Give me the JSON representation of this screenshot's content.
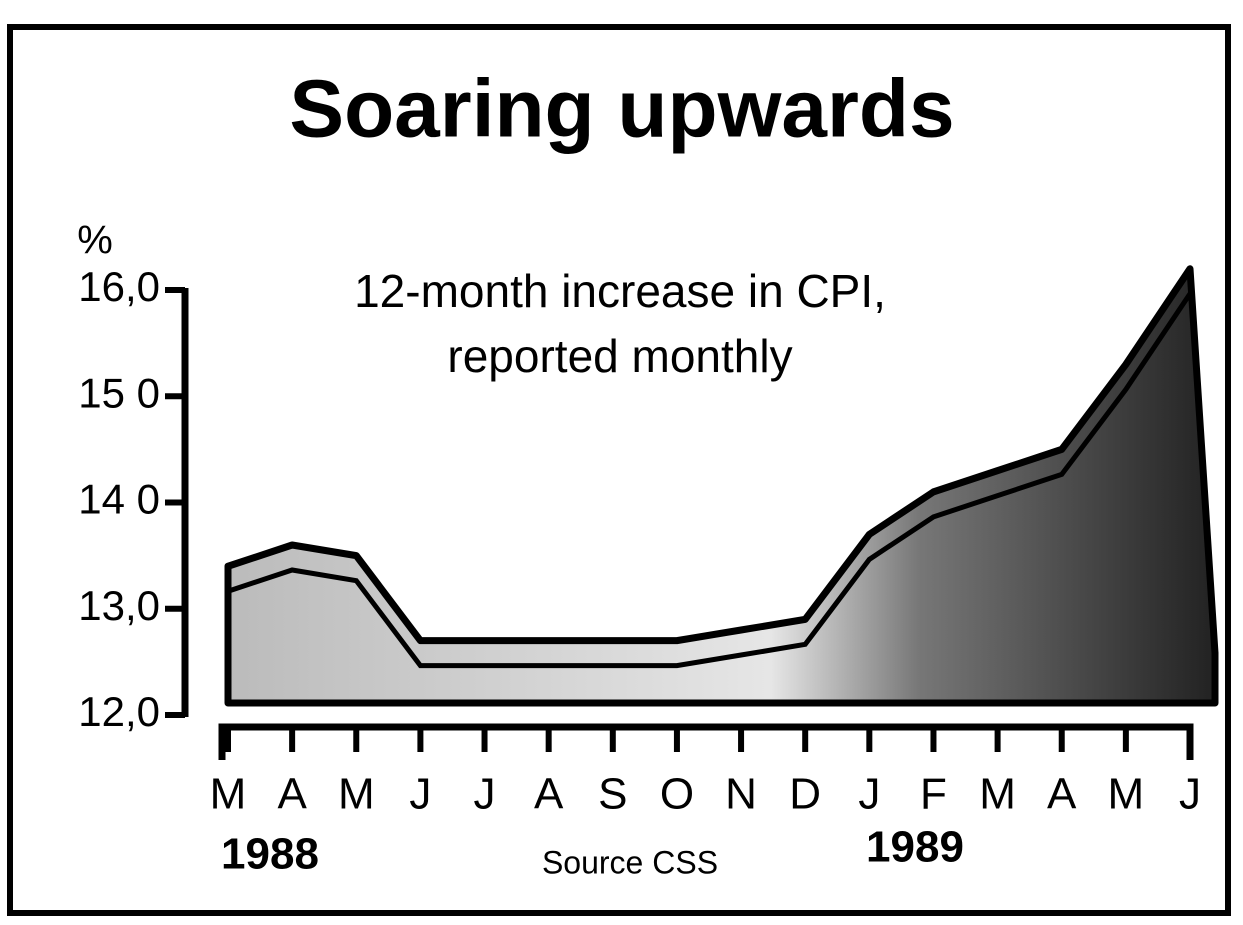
{
  "chart_data": {
    "type": "area",
    "title": "Soaring upwards",
    "subtitle": [
      "12-month increase in CPI,",
      "reported monthly"
    ],
    "y_label": "%",
    "categories": [
      "M",
      "A",
      "M",
      "J",
      "J",
      "A",
      "S",
      "O",
      "N",
      "D",
      "J",
      "F",
      "M",
      "A",
      "M",
      "J"
    ],
    "values": [
      13.4,
      13.6,
      13.5,
      12.7,
      12.7,
      12.7,
      12.7,
      12.7,
      12.8,
      12.9,
      13.7,
      14.1,
      14.3,
      14.5,
      15.3,
      16.2
    ],
    "year_labels": [
      "1988",
      "1989"
    ],
    "source": "Source CSS",
    "color": "#000000",
    "ylim": [
      12,
      16
    ],
    "yticks": [
      {
        "value": 12,
        "label": "12,0"
      },
      {
        "value": 13,
        "label": "13,0"
      },
      {
        "value": 14,
        "label": "14 0"
      },
      {
        "value": 15,
        "label": "15 0"
      },
      {
        "value": 16,
        "label": "16,0"
      }
    ]
  }
}
